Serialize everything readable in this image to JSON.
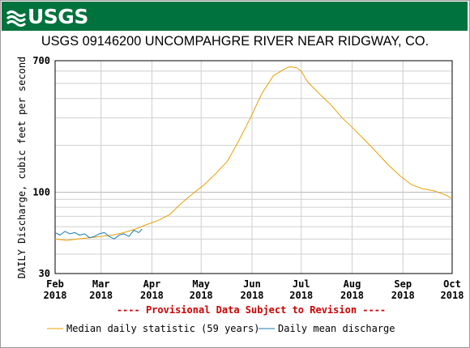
{
  "branding": {
    "logo_text": "USGS"
  },
  "colors": {
    "banner": "#00723d",
    "median": "#e8a000",
    "daily": "#1a7db0",
    "provisional": "#cc0000"
  },
  "chart_data": {
    "type": "line",
    "title": "USGS 09146200 UNCOMPAHGRE RIVER NEAR RIDGWAY, CO.",
    "ylabel": "DAILY Discharge, cubic feet per second",
    "y_scale": "log",
    "ylim": [
      30,
      700
    ],
    "y_ticks": [
      {
        "value": 30,
        "label": "30"
      },
      {
        "value": 100,
        "label": "100"
      },
      {
        "value": 700,
        "label": "700"
      }
    ],
    "y_minor_grid": [
      40,
      50,
      60,
      70,
      80,
      90,
      200,
      300,
      400,
      500,
      600
    ],
    "x_ticks": [
      {
        "date": "2018-02-01",
        "month": "Feb",
        "year": "2018"
      },
      {
        "date": "2018-03-01",
        "month": "Mar",
        "year": "2018"
      },
      {
        "date": "2018-04-01",
        "month": "Apr",
        "year": "2018"
      },
      {
        "date": "2018-05-01",
        "month": "May",
        "year": "2018"
      },
      {
        "date": "2018-06-01",
        "month": "Jun",
        "year": "2018"
      },
      {
        "date": "2018-07-01",
        "month": "Jul",
        "year": "2018"
      },
      {
        "date": "2018-08-01",
        "month": "Aug",
        "year": "2018"
      },
      {
        "date": "2018-09-01",
        "month": "Sep",
        "year": "2018"
      },
      {
        "date": "2018-10-01",
        "month": "Oct",
        "year": "2018"
      }
    ],
    "xlim": [
      "2018-02-01",
      "2018-10-01"
    ],
    "annotation": "---- Provisional Data Subject to Revision ----",
    "series": [
      {
        "name": "Median daily statistic (59 years)",
        "color": "#e8a000",
        "points": [
          [
            "2018-02-01",
            50
          ],
          [
            "2018-02-08",
            49
          ],
          [
            "2018-02-15",
            50
          ],
          [
            "2018-02-22",
            51
          ],
          [
            "2018-03-01",
            52
          ],
          [
            "2018-03-08",
            53
          ],
          [
            "2018-03-15",
            55
          ],
          [
            "2018-03-22",
            58
          ],
          [
            "2018-03-29",
            62
          ],
          [
            "2018-04-05",
            66
          ],
          [
            "2018-04-12",
            72
          ],
          [
            "2018-04-19",
            85
          ],
          [
            "2018-04-26",
            98
          ],
          [
            "2018-05-03",
            112
          ],
          [
            "2018-05-10",
            132
          ],
          [
            "2018-05-17",
            158
          ],
          [
            "2018-05-24",
            215
          ],
          [
            "2018-05-31",
            300
          ],
          [
            "2018-06-07",
            430
          ],
          [
            "2018-06-14",
            560
          ],
          [
            "2018-06-21",
            620
          ],
          [
            "2018-06-24",
            640
          ],
          [
            "2018-06-28",
            632
          ],
          [
            "2018-07-01",
            600
          ],
          [
            "2018-07-05",
            510
          ],
          [
            "2018-07-12",
            430
          ],
          [
            "2018-07-19",
            365
          ],
          [
            "2018-07-26",
            300
          ],
          [
            "2018-08-02",
            255
          ],
          [
            "2018-08-09",
            215
          ],
          [
            "2018-08-16",
            180
          ],
          [
            "2018-08-23",
            150
          ],
          [
            "2018-08-30",
            128
          ],
          [
            "2018-09-06",
            112
          ],
          [
            "2018-09-13",
            105
          ],
          [
            "2018-09-20",
            102
          ],
          [
            "2018-09-27",
            96
          ],
          [
            "2018-10-01",
            91
          ]
        ]
      },
      {
        "name": "Daily mean discharge",
        "color": "#1a7db0",
        "points": [
          [
            "2018-02-01",
            55
          ],
          [
            "2018-02-04",
            53
          ],
          [
            "2018-02-07",
            56
          ],
          [
            "2018-02-10",
            54
          ],
          [
            "2018-02-13",
            55
          ],
          [
            "2018-02-16",
            53
          ],
          [
            "2018-02-19",
            54
          ],
          [
            "2018-02-22",
            51
          ],
          [
            "2018-02-25",
            52
          ],
          [
            "2018-02-28",
            54
          ],
          [
            "2018-03-03",
            55
          ],
          [
            "2018-03-06",
            52
          ],
          [
            "2018-03-09",
            50
          ],
          [
            "2018-03-12",
            53
          ],
          [
            "2018-03-15",
            54
          ],
          [
            "2018-03-18",
            52
          ],
          [
            "2018-03-21",
            57
          ],
          [
            "2018-03-24",
            55
          ],
          [
            "2018-03-26",
            58
          ]
        ]
      }
    ],
    "legend": {
      "position": "bottom"
    }
  }
}
